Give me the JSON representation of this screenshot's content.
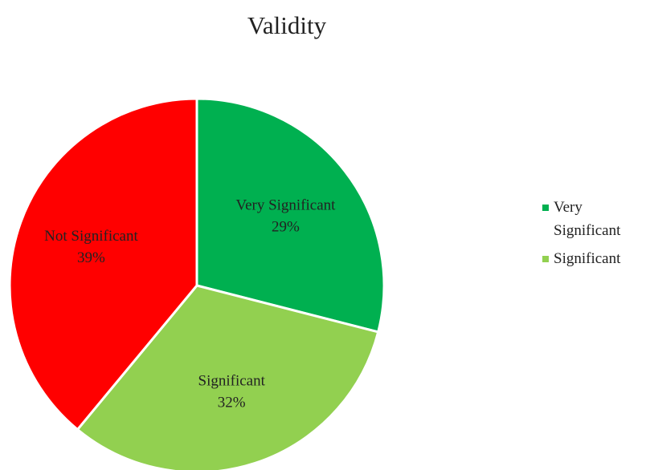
{
  "chart_data": {
    "type": "pie",
    "title": "Validity",
    "categories": [
      "Very Significant",
      "Significant",
      "Not Significant"
    ],
    "values": [
      29,
      32,
      39
    ],
    "value_labels": [
      "29%",
      "32%",
      "39%"
    ],
    "colors": [
      "#00b050",
      "#92d050",
      "#ff0000"
    ],
    "legend": "right"
  }
}
